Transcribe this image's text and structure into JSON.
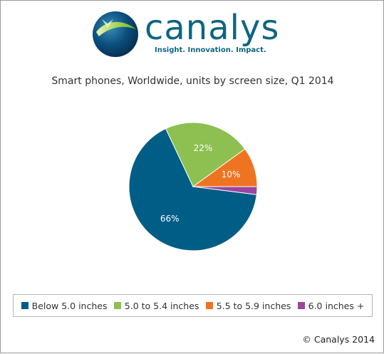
{
  "logo": {
    "wordmark": "canalys",
    "tagline": "Insight. Innovation. Impact."
  },
  "chart_data": {
    "type": "pie",
    "title": "Smart phones, Worldwide, units by screen size, Q1 2014",
    "slices": [
      {
        "name": "Below 5.0 inches",
        "value": 66,
        "label": "66%",
        "color": "#005d86"
      },
      {
        "name": "5.0 to 5.4 inches",
        "value": 22,
        "label": "22%",
        "color": "#8dc050"
      },
      {
        "name": "5.5 to 5.9 inches",
        "value": 10,
        "label": "10%",
        "color": "#ef7421"
      },
      {
        "name": "6.0 inches +",
        "value": 2,
        "label": "",
        "color": "#9a45a0"
      }
    ],
    "legend_position": "bottom"
  },
  "copyright": "© Canalys 2014"
}
